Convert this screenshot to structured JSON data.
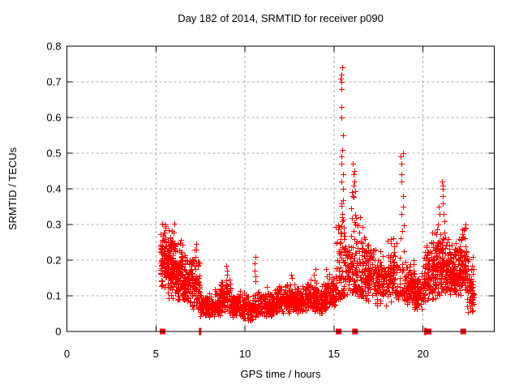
{
  "chart_data": {
    "type": "scatter",
    "title": "Day 182 of 2014, SRMTID for receiver p090",
    "xlabel": "GPS time / hours",
    "ylabel": "SRMTID / TECUs",
    "xlim": [
      0,
      24
    ],
    "ylim": [
      0,
      0.8
    ],
    "xticks": [
      0,
      5,
      10,
      15,
      20
    ],
    "yticks": [
      0,
      0.1,
      0.2,
      0.3,
      0.4,
      0.5,
      0.6,
      0.7,
      0.8
    ],
    "grid": true,
    "legend": "none",
    "marker": "+",
    "marker_color": "#ff0000",
    "grid_color": "#a8a8a8",
    "border_color": "#000000",
    "series_name": "SRMTID",
    "seed": 42,
    "clusters": [
      {
        "x0": 5.25,
        "x1": 5.65,
        "n": 100,
        "ymin": 0.12,
        "ymax": 0.315,
        "shape": "band"
      },
      {
        "x0": 5.65,
        "x1": 6.05,
        "n": 110,
        "ymin": 0.09,
        "ymax": 0.31,
        "shape": "band"
      },
      {
        "x0": 6.05,
        "x1": 6.5,
        "n": 100,
        "ymin": 0.08,
        "ymax": 0.28,
        "shape": "band"
      },
      {
        "x0": 6.5,
        "x1": 7.0,
        "n": 90,
        "ymin": 0.07,
        "ymax": 0.22,
        "shape": "band"
      },
      {
        "x0": 7.0,
        "x1": 7.45,
        "n": 70,
        "ymin": 0.06,
        "ymax": 0.245,
        "shape": "band"
      },
      {
        "x0": 7.45,
        "x1": 8.0,
        "n": 90,
        "ymin": 0.04,
        "ymax": 0.125,
        "shape": "band"
      },
      {
        "x0": 8.0,
        "x1": 8.6,
        "n": 90,
        "ymin": 0.04,
        "ymax": 0.12,
        "shape": "band"
      },
      {
        "x0": 8.6,
        "x1": 9.2,
        "n": 90,
        "ymin": 0.05,
        "ymax": 0.155,
        "shape": "band"
      },
      {
        "x0": 9.2,
        "x1": 9.8,
        "n": 85,
        "ymin": 0.04,
        "ymax": 0.12,
        "shape": "band"
      },
      {
        "x0": 9.8,
        "x1": 10.4,
        "n": 85,
        "ymin": 0.03,
        "ymax": 0.11,
        "shape": "band"
      },
      {
        "x0": 10.4,
        "x1": 11.0,
        "n": 85,
        "ymin": 0.03,
        "ymax": 0.12,
        "shape": "band"
      },
      {
        "x0": 11.0,
        "x1": 11.6,
        "n": 85,
        "ymin": 0.04,
        "ymax": 0.13,
        "shape": "band"
      },
      {
        "x0": 11.6,
        "x1": 12.2,
        "n": 90,
        "ymin": 0.05,
        "ymax": 0.135,
        "shape": "band"
      },
      {
        "x0": 12.2,
        "x1": 12.8,
        "n": 90,
        "ymin": 0.05,
        "ymax": 0.14,
        "shape": "band"
      },
      {
        "x0": 12.8,
        "x1": 13.4,
        "n": 90,
        "ymin": 0.05,
        "ymax": 0.135,
        "shape": "band"
      },
      {
        "x0": 13.4,
        "x1": 14.0,
        "n": 90,
        "ymin": 0.055,
        "ymax": 0.15,
        "shape": "band"
      },
      {
        "x0": 14.0,
        "x1": 14.6,
        "n": 85,
        "ymin": 0.05,
        "ymax": 0.14,
        "shape": "band"
      },
      {
        "x0": 14.6,
        "x1": 15.1,
        "n": 75,
        "ymin": 0.07,
        "ymax": 0.165,
        "shape": "band"
      },
      {
        "x0": 15.1,
        "x1": 15.35,
        "n": 40,
        "ymin": 0.09,
        "ymax": 0.3,
        "shape": "tail"
      },
      {
        "x0": 15.35,
        "x1": 15.6,
        "n": 45,
        "ymin": 0.1,
        "ymax": 0.38,
        "shape": "tail"
      },
      {
        "x0": 15.6,
        "x1": 15.95,
        "n": 50,
        "ymin": 0.1,
        "ymax": 0.27,
        "shape": "band"
      },
      {
        "x0": 15.95,
        "x1": 16.3,
        "n": 60,
        "ymin": 0.11,
        "ymax": 0.4,
        "shape": "tail"
      },
      {
        "x0": 16.3,
        "x1": 16.7,
        "n": 60,
        "ymin": 0.1,
        "ymax": 0.33,
        "shape": "tail"
      },
      {
        "x0": 16.7,
        "x1": 17.3,
        "n": 100,
        "ymin": 0.08,
        "ymax": 0.27,
        "shape": "band"
      },
      {
        "x0": 17.3,
        "x1": 18.0,
        "n": 100,
        "ymin": 0.07,
        "ymax": 0.24,
        "shape": "band"
      },
      {
        "x0": 18.0,
        "x1": 18.6,
        "n": 90,
        "ymin": 0.08,
        "ymax": 0.27,
        "shape": "band"
      },
      {
        "x0": 18.65,
        "x1": 18.95,
        "n": 30,
        "ymin": 0.1,
        "ymax": 0.3,
        "shape": "tail"
      },
      {
        "x0": 18.95,
        "x1": 19.5,
        "n": 85,
        "ymin": 0.07,
        "ymax": 0.2,
        "shape": "band"
      },
      {
        "x0": 19.5,
        "x1": 20.0,
        "n": 75,
        "ymin": 0.06,
        "ymax": 0.18,
        "shape": "band"
      },
      {
        "x0": 20.0,
        "x1": 20.45,
        "n": 80,
        "ymin": 0.08,
        "ymax": 0.27,
        "shape": "band"
      },
      {
        "x0": 20.45,
        "x1": 21.0,
        "n": 110,
        "ymin": 0.09,
        "ymax": 0.3,
        "shape": "band"
      },
      {
        "x0": 21.0,
        "x1": 21.5,
        "n": 100,
        "ymin": 0.1,
        "ymax": 0.3,
        "shape": "band"
      },
      {
        "x0": 21.5,
        "x1": 22.0,
        "n": 95,
        "ymin": 0.1,
        "ymax": 0.26,
        "shape": "band"
      },
      {
        "x0": 22.0,
        "x1": 22.45,
        "n": 90,
        "ymin": 0.1,
        "ymax": 0.31,
        "shape": "band"
      },
      {
        "x0": 22.45,
        "x1": 22.85,
        "n": 70,
        "ymin": 0.05,
        "ymax": 0.23,
        "shape": "band"
      }
    ],
    "spikes": [
      {
        "x": 15.45,
        "ys": [
          0.74,
          0.72,
          0.71,
          0.7,
          0.68,
          0.63,
          0.6,
          0.55,
          0.51,
          0.49,
          0.47,
          0.44,
          0.42,
          0.4
        ]
      },
      {
        "x": 16.1,
        "ys": [
          0.47,
          0.45,
          0.44,
          0.42,
          0.41
        ]
      },
      {
        "x": 18.8,
        "ys": [
          0.5,
          0.49,
          0.47,
          0.44,
          0.42,
          0.38,
          0.35,
          0.33
        ]
      },
      {
        "x": 21.15,
        "ys": [
          0.42,
          0.41,
          0.4,
          0.38,
          0.36,
          0.33,
          0.31
        ]
      },
      {
        "x": 20.9,
        "ys": [
          0.35,
          0.33,
          0.3
        ]
      },
      {
        "x": 10.6,
        "ys": [
          0.21,
          0.19,
          0.17,
          0.155,
          0.14
        ]
      },
      {
        "x": 8.95,
        "ys": [
          0.185,
          0.17,
          0.16
        ]
      },
      {
        "x": 13.9,
        "ys": [
          0.175,
          0.16
        ]
      },
      {
        "x": 12.6,
        "ys": [
          0.16,
          0.15
        ]
      },
      {
        "x": 7.2,
        "ys": [
          0.245,
          0.23,
          0.21
        ]
      },
      {
        "x": 22.35,
        "ys": [
          0.3,
          0.29,
          0.285
        ]
      },
      {
        "x": 14.55,
        "ys": [
          0.175
        ]
      }
    ],
    "baseline_markers": [
      {
        "x": 5.37,
        "wide": true
      },
      {
        "x": 7.48,
        "wide": false
      },
      {
        "x": 15.26,
        "wide": true
      },
      {
        "x": 16.18,
        "wide": true
      },
      {
        "x": 20.13,
        "wide": false
      },
      {
        "x": 20.31,
        "wide": true
      },
      {
        "x": 22.26,
        "wide": true
      }
    ]
  }
}
